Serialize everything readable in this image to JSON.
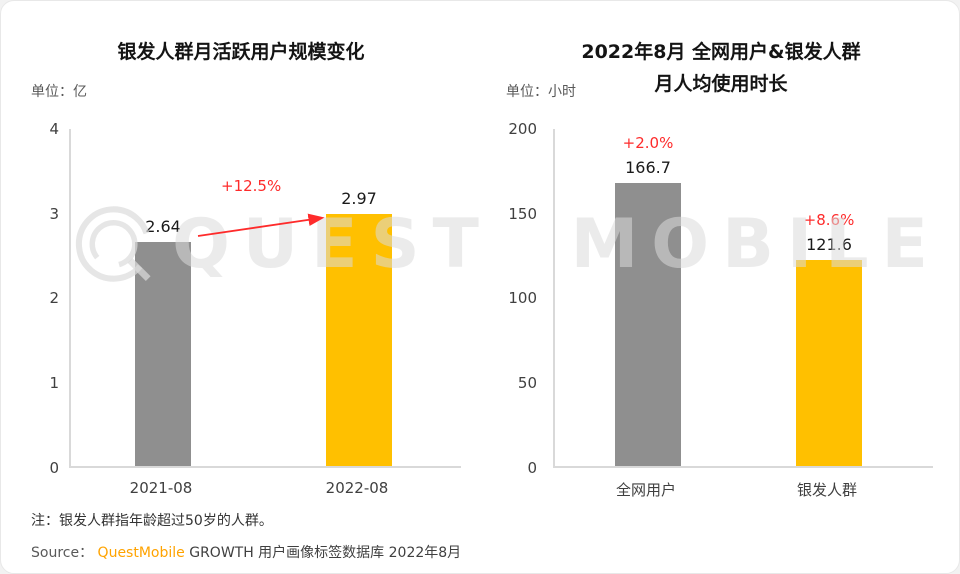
{
  "colors": {
    "gray_bar": "#8f8f8f",
    "yellow_bar": "#ffc000",
    "red_accent": "#fe2b2b",
    "brand_orange": "#ffa300",
    "axis": "#d9d9d9"
  },
  "watermark": {
    "text": "QUEST MOBILE",
    "logo_icon": "questmobile-logo-icon"
  },
  "note": "注：银发人群指年龄超过50岁的人群。",
  "source": {
    "label": "Source：",
    "brand": "QuestMobile",
    "rest": " GROWTH 用户画像标签数据库 2022年8月"
  },
  "chart_data": [
    {
      "type": "bar",
      "title": "银发人群月活跃用户规模变化",
      "unit_label": "单位：亿",
      "categories": [
        "2021-08",
        "2022-08"
      ],
      "values": [
        2.64,
        2.97
      ],
      "value_labels": [
        "2.64",
        "2.97"
      ],
      "bar_colors": [
        "#8f8f8f",
        "#ffc000"
      ],
      "growth_label": "+12.5%",
      "xlabel": "",
      "ylabel": "",
      "ylim": [
        0,
        4
      ],
      "yticks": [
        0,
        1,
        2,
        3,
        4
      ],
      "grid": false,
      "legend": false
    },
    {
      "type": "bar",
      "title_line1": "2022年8月 全网用户&银发人群",
      "title_line2": "月人均使用时长",
      "unit_label": "单位：小时",
      "categories": [
        "全网用户",
        "银发人群"
      ],
      "values": [
        166.7,
        121.6
      ],
      "value_labels": [
        "166.7",
        "121.6"
      ],
      "bar_colors": [
        "#8f8f8f",
        "#ffc000"
      ],
      "growth_labels": [
        "+2.0%",
        "+8.6%"
      ],
      "xlabel": "",
      "ylabel": "",
      "ylim": [
        0,
        200
      ],
      "yticks": [
        0,
        50,
        100,
        150,
        200
      ],
      "grid": false,
      "legend": false
    }
  ]
}
